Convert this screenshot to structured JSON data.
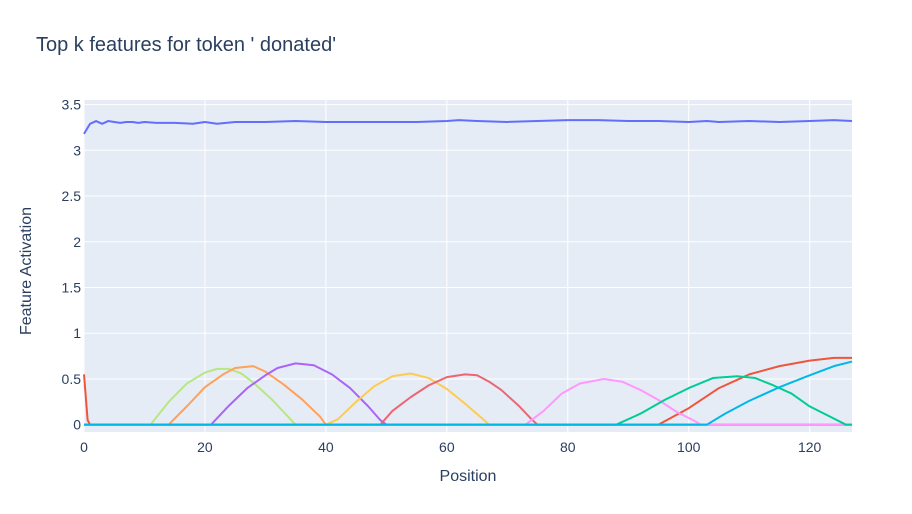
{
  "chart_data": {
    "type": "line",
    "title": "Top k features for token ' donated'",
    "xlabel": "Position",
    "ylabel": "Feature Activation",
    "xlim": [
      0,
      127
    ],
    "ylim": [
      -0.08,
      3.55
    ],
    "xticks": [
      0,
      20,
      40,
      60,
      80,
      100,
      120
    ],
    "yticks": [
      0,
      0.5,
      1,
      1.5,
      2,
      2.5,
      3,
      3.5
    ],
    "ytick_labels": [
      "0",
      "0.5",
      "1",
      "1.5",
      "2",
      "2.5",
      "3",
      "3.5"
    ],
    "grid": true,
    "legend": "none",
    "series": [
      {
        "color": "#636efa",
        "points": [
          [
            0,
            3.18
          ],
          [
            1,
            3.29
          ],
          [
            2,
            3.32
          ],
          [
            3,
            3.29
          ],
          [
            4,
            3.32
          ],
          [
            5,
            3.31
          ],
          [
            6,
            3.3
          ],
          [
            7,
            3.31
          ],
          [
            8,
            3.31
          ],
          [
            9,
            3.3
          ],
          [
            10,
            3.31
          ],
          [
            12,
            3.3
          ],
          [
            15,
            3.3
          ],
          [
            18,
            3.29
          ],
          [
            20,
            3.31
          ],
          [
            22,
            3.29
          ],
          [
            25,
            3.31
          ],
          [
            30,
            3.31
          ],
          [
            35,
            3.32
          ],
          [
            40,
            3.31
          ],
          [
            45,
            3.31
          ],
          [
            50,
            3.31
          ],
          [
            55,
            3.31
          ],
          [
            60,
            3.32
          ],
          [
            62,
            3.33
          ],
          [
            65,
            3.32
          ],
          [
            70,
            3.31
          ],
          [
            75,
            3.32
          ],
          [
            80,
            3.33
          ],
          [
            85,
            3.33
          ],
          [
            90,
            3.32
          ],
          [
            95,
            3.32
          ],
          [
            100,
            3.31
          ],
          [
            103,
            3.32
          ],
          [
            105,
            3.31
          ],
          [
            110,
            3.32
          ],
          [
            115,
            3.31
          ],
          [
            120,
            3.32
          ],
          [
            124,
            3.33
          ],
          [
            127,
            3.32
          ]
        ]
      },
      {
        "color": "#ef553b",
        "points": [
          [
            0,
            0.55
          ],
          [
            0.6,
            0.05
          ],
          [
            1,
            0.0
          ],
          [
            95,
            0.0
          ],
          [
            100,
            0.18
          ],
          [
            105,
            0.4
          ],
          [
            110,
            0.55
          ],
          [
            115,
            0.64
          ],
          [
            120,
            0.7
          ],
          [
            124,
            0.73
          ],
          [
            127,
            0.73
          ]
        ]
      },
      {
        "color": "#b6e880",
        "points": [
          [
            0,
            0.0
          ],
          [
            11,
            0.0
          ],
          [
            14,
            0.25
          ],
          [
            17,
            0.45
          ],
          [
            20,
            0.57
          ],
          [
            22,
            0.61
          ],
          [
            24,
            0.61
          ],
          [
            26,
            0.56
          ],
          [
            28,
            0.46
          ],
          [
            31,
            0.28
          ],
          [
            34,
            0.07
          ],
          [
            35,
            0.0
          ],
          [
            127,
            0.0
          ]
        ]
      },
      {
        "color": "#ffa15a",
        "points": [
          [
            0,
            0.0
          ],
          [
            14,
            0.0
          ],
          [
            17,
            0.2
          ],
          [
            20,
            0.41
          ],
          [
            23,
            0.55
          ],
          [
            25,
            0.62
          ],
          [
            28,
            0.64
          ],
          [
            30,
            0.58
          ],
          [
            33,
            0.44
          ],
          [
            36,
            0.28
          ],
          [
            39,
            0.09
          ],
          [
            40,
            0.0
          ],
          [
            127,
            0.0
          ]
        ]
      },
      {
        "color": "#ab63fa",
        "points": [
          [
            0,
            0.0
          ],
          [
            21,
            0.0
          ],
          [
            24,
            0.21
          ],
          [
            27,
            0.4
          ],
          [
            30,
            0.54
          ],
          [
            32,
            0.62
          ],
          [
            35,
            0.67
          ],
          [
            38,
            0.65
          ],
          [
            41,
            0.55
          ],
          [
            44,
            0.4
          ],
          [
            47,
            0.2
          ],
          [
            49,
            0.05
          ],
          [
            50,
            0.0
          ],
          [
            127,
            0.0
          ]
        ]
      },
      {
        "color": "#fecb52",
        "points": [
          [
            0,
            0.0
          ],
          [
            40,
            0.0
          ],
          [
            42,
            0.06
          ],
          [
            45,
            0.25
          ],
          [
            48,
            0.42
          ],
          [
            51,
            0.53
          ],
          [
            54,
            0.56
          ],
          [
            57,
            0.51
          ],
          [
            60,
            0.39
          ],
          [
            63,
            0.23
          ],
          [
            66,
            0.06
          ],
          [
            67,
            0.0
          ],
          [
            127,
            0.0
          ]
        ]
      },
      {
        "color": "#eb6672",
        "points": [
          [
            0,
            0.0
          ],
          [
            49,
            0.0
          ],
          [
            51,
            0.15
          ],
          [
            54,
            0.3
          ],
          [
            57,
            0.43
          ],
          [
            60,
            0.52
          ],
          [
            63,
            0.55
          ],
          [
            65,
            0.54
          ],
          [
            67,
            0.47
          ],
          [
            69,
            0.38
          ],
          [
            72,
            0.2
          ],
          [
            74,
            0.06
          ],
          [
            75,
            0.0
          ],
          [
            127,
            0.0
          ]
        ]
      },
      {
        "color": "#ff97ff",
        "points": [
          [
            0,
            0.0
          ],
          [
            73,
            0.0
          ],
          [
            76,
            0.15
          ],
          [
            79,
            0.34
          ],
          [
            82,
            0.45
          ],
          [
            86,
            0.5
          ],
          [
            89,
            0.47
          ],
          [
            92,
            0.38
          ],
          [
            95,
            0.27
          ],
          [
            98,
            0.14
          ],
          [
            101,
            0.04
          ],
          [
            102,
            0.0
          ],
          [
            127,
            0.0
          ]
        ]
      },
      {
        "color": "#00cc96",
        "points": [
          [
            0,
            0.0
          ],
          [
            88,
            0.0
          ],
          [
            92,
            0.12
          ],
          [
            96,
            0.27
          ],
          [
            100,
            0.4
          ],
          [
            104,
            0.51
          ],
          [
            108,
            0.53
          ],
          [
            111,
            0.51
          ],
          [
            114,
            0.43
          ],
          [
            117,
            0.34
          ],
          [
            120,
            0.2
          ],
          [
            123,
            0.1
          ],
          [
            126,
            0.0
          ],
          [
            127,
            0.0
          ]
        ]
      },
      {
        "color": "#00b8e6",
        "points": [
          [
            0,
            0.0
          ],
          [
            103,
            0.0
          ],
          [
            106,
            0.12
          ],
          [
            110,
            0.26
          ],
          [
            115,
            0.41
          ],
          [
            120,
            0.54
          ],
          [
            124,
            0.64
          ],
          [
            127,
            0.69
          ]
        ]
      }
    ]
  }
}
